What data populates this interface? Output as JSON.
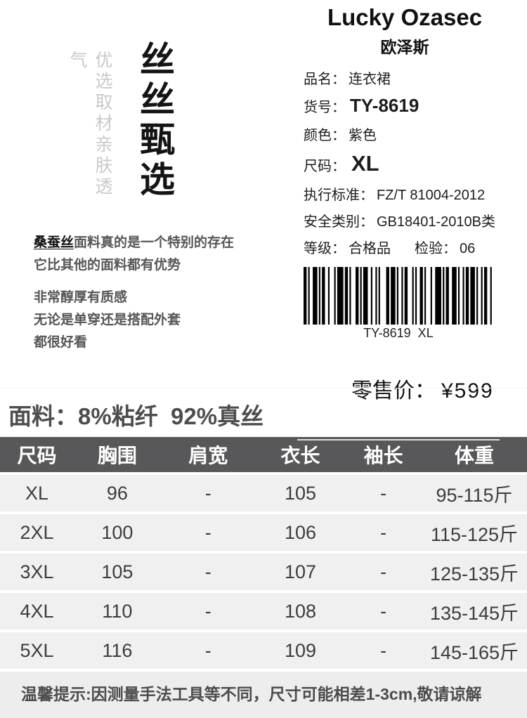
{
  "brand": {
    "title": "Lucky Ozasec",
    "subtitle": "欧泽斯",
    "vertical_main": "丝丝甄选",
    "vertical_sub": "优选取材亲肤透气"
  },
  "specs": {
    "name_label": "品名：",
    "name_value": "连衣裙",
    "sku_label": "货号：",
    "sku_value": "TY-8619",
    "color_label": "颜色：",
    "color_value": "紫色",
    "size_label": "尺码：",
    "size_value": "XL",
    "standard_label": "执行标准：",
    "standard_value": "FZ/T 81004-2012",
    "safety_label": "安全类别：",
    "safety_value": "GB18401-2010B类",
    "grade_label": "等级：",
    "grade_value": "合格品",
    "inspect_label": "检验：",
    "inspect_value": "06"
  },
  "barcode": {
    "text": "TY-8619  XL"
  },
  "price": {
    "label": "零售价：",
    "value": "¥599"
  },
  "description": {
    "highlight": "桑蚕丝",
    "line1": "面料真的是一个特别的存在",
    "line2": "它比其他的面料都有优势",
    "line3": "非常醇厚有质感",
    "line4": "无论是单穿还是搭配外套",
    "line5": "都很好看"
  },
  "fabric_line": "面料：8%粘纤  92%真丝",
  "size_table": {
    "headers": [
      "尺码",
      "胸围",
      "肩宽",
      "衣长",
      "袖长",
      "体重"
    ],
    "rows": [
      [
        "XL",
        "96",
        "-",
        "105",
        "-",
        "95-115斤"
      ],
      [
        "2XL",
        "100",
        "-",
        "106",
        "-",
        "115-125斤"
      ],
      [
        "3XL",
        "105",
        "-",
        "107",
        "-",
        "125-135斤"
      ],
      [
        "4XL",
        "110",
        "-",
        "108",
        "-",
        "135-145斤"
      ],
      [
        "5XL",
        "116",
        "-",
        "109",
        "-",
        "145-165斤"
      ]
    ]
  },
  "notice": "温馨提示:因测量手法工具等不同，尺寸可能相差1-3cm,敬请谅解",
  "colors": {
    "table_header_bg": "#58585a",
    "table_row_bg": "#f0f0f0",
    "notice_bg": "#ededed",
    "text_gray": "#565656",
    "vertical_sub_gray": "#c9c9c9"
  }
}
